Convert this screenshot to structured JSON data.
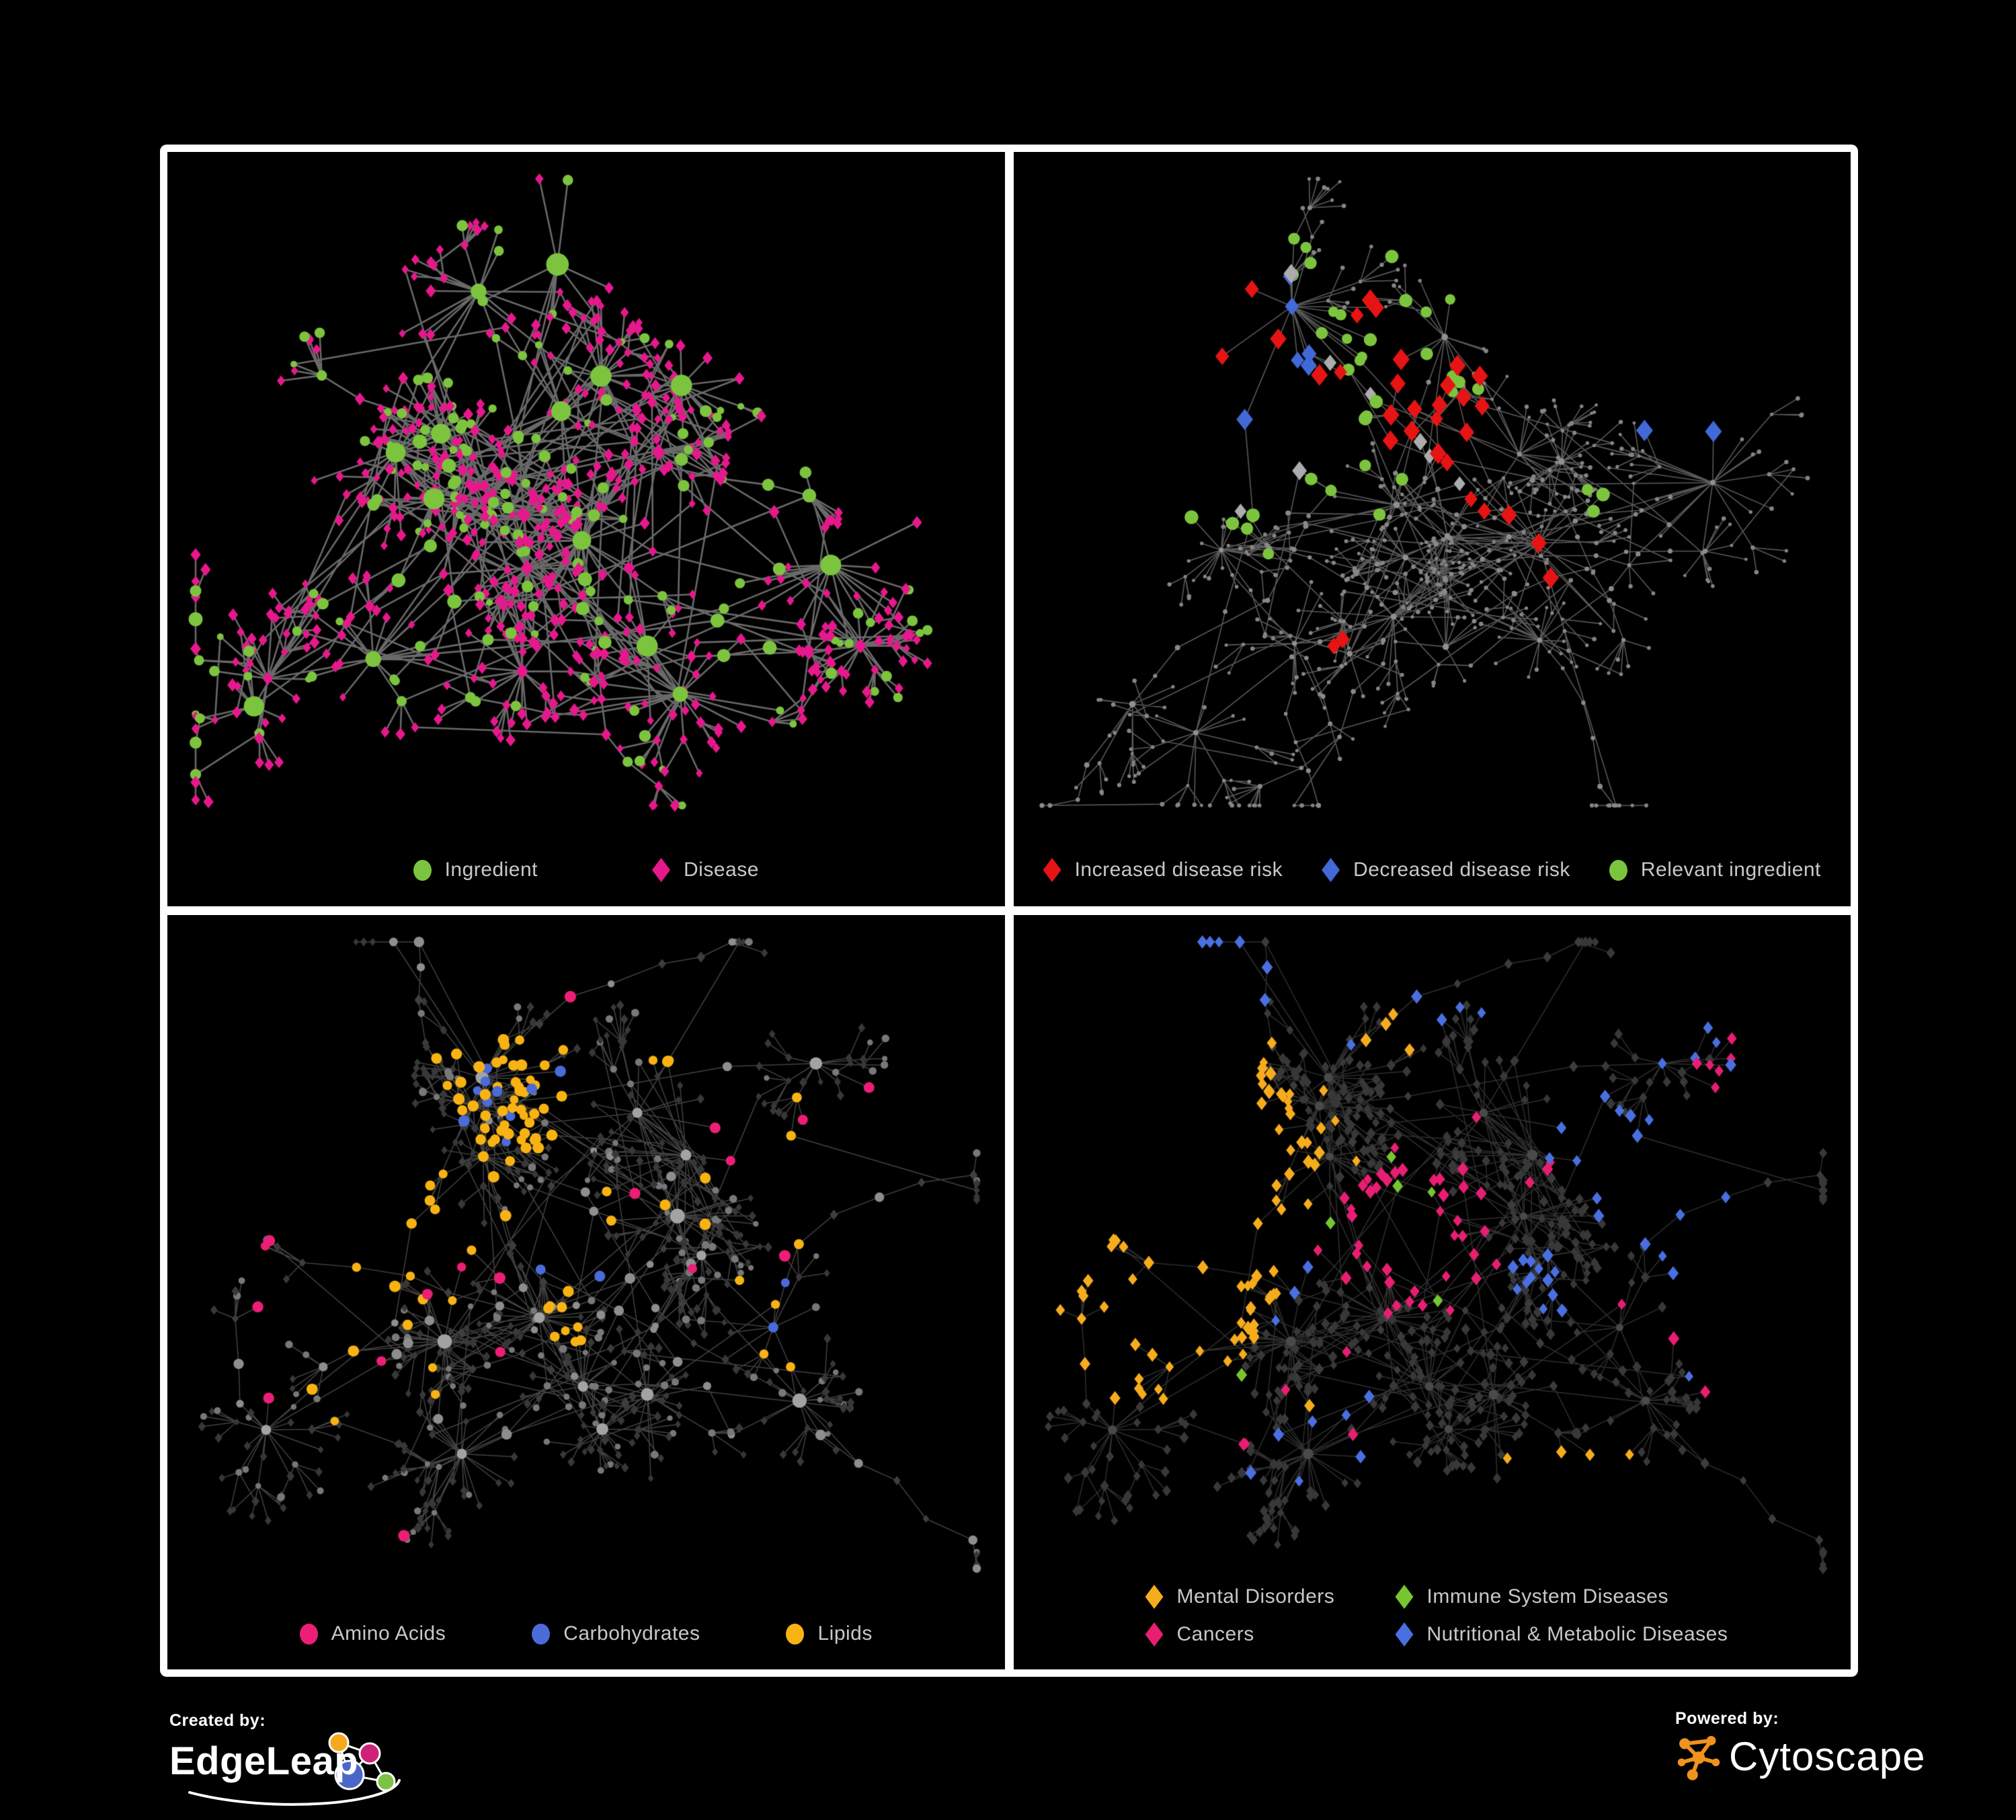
{
  "page": {
    "background": "#000000",
    "frame_color": "#ffffff",
    "legend_text_color": "#c8c8c8"
  },
  "branding": {
    "created_by_label": "Created by:",
    "created_by_name": "EdgeLeap",
    "powered_by_label": "Powered by:",
    "powered_by_name": "Cytoscape",
    "edgeleap_node_colors": [
      "#F6A91D",
      "#CE2178",
      "#4A67C8",
      "#7DC242"
    ],
    "cytoscape_color": "#F0921E"
  },
  "panels": [
    {
      "name": "ingredient-disease-network",
      "legend": [
        {
          "shape": "circle",
          "color": "#7CC43E",
          "label": "Ingredient"
        },
        {
          "shape": "diamond",
          "color": "#E6188C",
          "label": "Disease"
        }
      ],
      "network": {
        "layoutSeed": 7,
        "styleSeed": 71,
        "hubs": 20,
        "leafMin": 8,
        "leafMax": 26,
        "twigProb": 0.22,
        "strandProb": 0.35,
        "crossLinks": 150,
        "crossDist": 340,
        "edge": {
          "color": "#7B7B7B",
          "width": 2.6,
          "alpha": 0.85
        },
        "styles": {
          "hub": [
            {
              "w": 0.75,
              "shape": "circle",
              "color": "#7CC43E",
              "r": [
                10,
                17
              ]
            },
            {
              "w": 0.25,
              "shape": "diamond",
              "color": "#E6188C",
              "r": [
                8,
                11
              ]
            }
          ],
          "chain": [
            {
              "w": 0.45,
              "shape": "circle",
              "color": "#7CC43E",
              "r": [
                7,
                11
              ]
            },
            {
              "w": 0.55,
              "shape": "diamond",
              "color": "#E6188C",
              "r": [
                6,
                9
              ]
            }
          ],
          "leaf": [
            {
              "w": 0.2,
              "shape": "circle",
              "color": "#7CC43E",
              "r": [
                5,
                9
              ]
            },
            {
              "w": 0.8,
              "shape": "diamond",
              "color": "#E6188C",
              "r": [
                5.5,
                8.5
              ]
            }
          ]
        },
        "specials": []
      }
    },
    {
      "name": "disease-risk-network",
      "legend": [
        {
          "shape": "diamond",
          "color": "#E61414",
          "label": "Increased disease risk"
        },
        {
          "shape": "diamond",
          "color": "#4169D8",
          "label": "Decreased disease risk"
        },
        {
          "shape": "circle",
          "color": "#7CC43E",
          "label": "Relevant ingredient"
        }
      ],
      "network": {
        "layoutSeed": 19,
        "styleSeed": 91,
        "hubs": 18,
        "leafMin": 7,
        "leafMax": 20,
        "twigProb": 0.3,
        "strandProb": 0.85,
        "crossLinks": 40,
        "crossDist": 300,
        "edge": {
          "color": "#6F6F6F",
          "width": 1.6,
          "alpha": 0.8
        },
        "styles": {
          "hub": [
            {
              "w": 1,
              "shape": "circle",
              "color": "#909090",
              "r": [
                3.5,
                5
              ]
            }
          ],
          "chain": [
            {
              "w": 1,
              "shape": "circle",
              "color": "#8A8A8A",
              "r": [
                2.8,
                4
              ]
            }
          ],
          "leaf": [
            {
              "w": 1,
              "shape": "circle",
              "color": "#858585",
              "r": [
                2.4,
                3.4
              ]
            }
          ]
        },
        "specials": [
          {
            "shape": "diamond",
            "color": "#E61414",
            "r": 12,
            "clusters": [
              [
                0.46,
                0.32,
                0.14,
                20
              ],
              [
                0.21,
                0.21,
                0.05,
                3
              ],
              [
                0.62,
                0.6,
                0.06,
                3
              ],
              [
                0.38,
                0.74,
                0.05,
                2
              ],
              [
                0.56,
                0.47,
                0.08,
                3
              ]
            ]
          },
          {
            "shape": "diamond",
            "color": "#4169D8",
            "r": 12,
            "clusters": [
              [
                0.165,
                0.3,
                0.055,
                6
              ],
              [
                0.815,
                0.335,
                0.018,
                2
              ]
            ]
          },
          {
            "shape": "diamond",
            "color": "#ACACAC",
            "r": 11,
            "clusters": [
              [
                0.31,
                0.4,
                0.16,
                4
              ],
              [
                0.52,
                0.44,
                0.09,
                3
              ],
              [
                0.17,
                0.25,
                0.03,
                1
              ]
            ]
          },
          {
            "shape": "circle",
            "color": "#7CC43E",
            "r": 9,
            "clusters": [
              [
                0.44,
                0.36,
                0.17,
                22
              ],
              [
                0.14,
                0.2,
                0.09,
                5
              ],
              [
                0.74,
                0.5,
                0.05,
                3
              ],
              [
                0.29,
                0.58,
                0.12,
                4
              ],
              [
                0.52,
                0.16,
                0.1,
                3
              ]
            ]
          }
        ]
      }
    },
    {
      "name": "nutrient-class-network",
      "legend": [
        {
          "shape": "circle",
          "color": "#EC1E75",
          "label": "Amino Acids"
        },
        {
          "shape": "circle",
          "color": "#4A6BD8",
          "label": "Carbohydrates"
        },
        {
          "shape": "circle",
          "color": "#F8B313",
          "label": "Lipids"
        }
      ],
      "network": {
        "layoutSeed": 33,
        "styleSeed": 301,
        "hubs": 17,
        "leafMin": 8,
        "leafMax": 24,
        "twigProb": 0.26,
        "strandProb": 0.6,
        "crossLinks": 70,
        "crossDist": 320,
        "edge": {
          "color": "#A5A5A5",
          "width": 1.5,
          "alpha": 0.4
        },
        "styles": {
          "hub": [
            {
              "w": 0.85,
              "shape": "circle",
              "color": "#A3A3A3",
              "r": [
                7,
                11
              ]
            },
            {
              "w": 0.15,
              "shape": "circle",
              "color": "#6E6E6E",
              "r": [
                6,
                9
              ]
            }
          ],
          "chain": [
            {
              "w": 0.5,
              "shape": "circle",
              "color": "#8E8E8E",
              "r": [
                5,
                8
              ]
            },
            {
              "w": 0.5,
              "shape": "diamond",
              "color": "#3E3E3E",
              "r": [
                5,
                7
              ]
            }
          ],
          "leaf": [
            {
              "w": 0.72,
              "shape": "diamond",
              "color": "#383838",
              "r": [
                4.5,
                6.5
              ]
            },
            {
              "w": 0.28,
              "shape": "circle",
              "color": "#787878",
              "r": [
                4,
                6
              ]
            }
          ]
        },
        "specials": [
          {
            "shape": "circle",
            "color": "#F8B313",
            "r": 7.5,
            "clusters": [
              [
                0.4,
                0.26,
                0.1,
                52
              ],
              [
                0.34,
                0.5,
                0.2,
                16
              ],
              [
                0.47,
                0.62,
                0.035,
                8
              ],
              [
                0.62,
                0.32,
                0.22,
                10
              ],
              [
                0.75,
                0.55,
                0.15,
                5
              ],
              [
                0.2,
                0.72,
                0.15,
                4
              ]
            ]
          },
          {
            "shape": "circle",
            "color": "#4A6BD8",
            "r": 7.5,
            "clusters": [
              [
                0.4,
                0.26,
                0.085,
                11
              ],
              [
                0.74,
                0.6,
                0.02,
                2
              ],
              [
                0.06,
                0.3,
                0.03,
                1
              ],
              [
                0.47,
                0.45,
                0.1,
                2
              ]
            ]
          },
          {
            "shape": "circle",
            "color": "#EC1E75",
            "r": 7.5,
            "clusters": [
              [
                0.33,
                0.62,
                0.3,
                9
              ],
              [
                0.72,
                0.42,
                0.18,
                4
              ],
              [
                0.09,
                0.36,
                0.12,
                2
              ],
              [
                0.5,
                0.08,
                0.04,
                1
              ],
              [
                0.85,
                0.3,
                0.1,
                2
              ]
            ]
          }
        ]
      }
    },
    {
      "name": "disease-class-network",
      "legend": [
        {
          "shape": "diamond",
          "color": "#F6AC1D",
          "label": "Mental Disorders"
        },
        {
          "shape": "diamond",
          "color": "#77C630",
          "label": "Immune System Diseases"
        },
        {
          "shape": "diamond",
          "color": "#E81E72",
          "label": "Cancers"
        },
        {
          "shape": "diamond",
          "color": "#4A6FE0",
          "label": "Nutritional & Metabolic Diseases"
        }
      ],
      "network": {
        "layoutSeed": 33,
        "styleSeed": 302,
        "hubs": 17,
        "leafMin": 8,
        "leafMax": 24,
        "twigProb": 0.26,
        "strandProb": 0.6,
        "crossLinks": 70,
        "crossDist": 320,
        "edge": {
          "color": "#8F8F8F",
          "width": 1.5,
          "alpha": 0.33
        },
        "styles": {
          "hub": [
            {
              "w": 1,
              "shape": "circle",
              "color": "#4A4A4A",
              "r": [
                5,
                8
              ]
            }
          ],
          "chain": [
            {
              "w": 1,
              "shape": "diamond",
              "color": "#3C3C3C",
              "r": [
                5.5,
                7.5
              ]
            }
          ],
          "leaf": [
            {
              "w": 1,
              "shape": "diamond",
              "color": "#383838",
              "r": [
                5.5,
                7.5
              ]
            }
          ]
        },
        "specials": [
          {
            "shape": "diamond",
            "color": "#F6AC1D",
            "r": 8,
            "clusters": [
              [
                0.16,
                0.42,
                0.11,
                64
              ],
              [
                0.28,
                0.28,
                0.2,
                10
              ],
              [
                0.12,
                0.6,
                0.1,
                6
              ],
              [
                0.55,
                0.75,
                0.25,
                5
              ],
              [
                0.45,
                0.1,
                0.1,
                3
              ]
            ]
          },
          {
            "shape": "diamond",
            "color": "#77C630",
            "r": 8,
            "clusters": [
              [
                0.44,
                0.36,
                0.1,
                4
              ],
              [
                0.24,
                0.72,
                0.05,
                1
              ],
              [
                0.52,
                0.56,
                0.05,
                1
              ]
            ]
          },
          {
            "shape": "diamond",
            "color": "#E81E72",
            "r": 8,
            "clusters": [
              [
                0.47,
                0.46,
                0.12,
                40
              ],
              [
                0.88,
                0.2,
                0.045,
                6
              ],
              [
                0.32,
                0.7,
                0.15,
                5
              ],
              [
                0.6,
                0.3,
                0.1,
                4
              ],
              [
                0.75,
                0.65,
                0.12,
                3
              ]
            ]
          },
          {
            "shape": "diamond",
            "color": "#4A6FE0",
            "r": 8,
            "clusters": [
              [
                0.63,
                0.52,
                0.05,
                13
              ],
              [
                0.78,
                0.3,
                0.13,
                14
              ],
              [
                0.34,
                0.77,
                0.08,
                7
              ],
              [
                0.1,
                0.13,
                0.11,
                6
              ],
              [
                0.5,
                0.06,
                0.15,
                5
              ],
              [
                0.88,
                0.55,
                0.1,
                4
              ],
              [
                0.95,
                0.08,
                0.05,
                3
              ],
              [
                0.25,
                0.5,
                0.1,
                3
              ]
            ]
          }
        ]
      }
    }
  ]
}
